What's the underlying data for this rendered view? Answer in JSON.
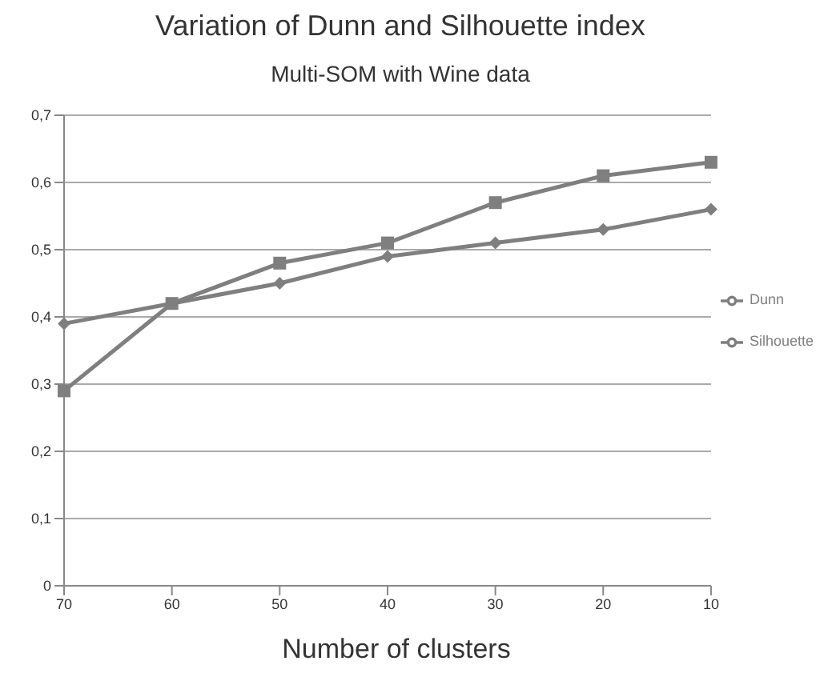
{
  "chart_data": {
    "type": "line",
    "title": "Variation of Dunn and Silhouette index",
    "subtitle": "Multi-SOM with Wine data",
    "xlabel": "Number of clusters",
    "categories": [
      "70",
      "60",
      "50",
      "40",
      "30",
      "20",
      "10"
    ],
    "series": [
      {
        "name": "Dunn",
        "color": "#7f7f7f",
        "marker": "diamond",
        "values": [
          0.39,
          0.42,
          0.45,
          0.49,
          0.51,
          0.53,
          0.56
        ]
      },
      {
        "name": "Silhouette",
        "color": "#7f7f7f",
        "marker": "square",
        "values": [
          0.29,
          0.42,
          0.48,
          0.51,
          0.57,
          0.61,
          0.63
        ]
      }
    ],
    "ylim": [
      0,
      0.7
    ],
    "yticks": [
      0,
      {
        "value": 0.1,
        "label": "0,1"
      },
      {
        "value": 0.2,
        "label": "0,2"
      },
      {
        "value": 0.3,
        "label": "0,3"
      },
      {
        "value": 0.4,
        "label": "0,4"
      },
      {
        "value": 0.5,
        "label": "0,5"
      },
      {
        "value": 0.6,
        "label": "0,6"
      },
      {
        "value": 0.7,
        "label": "0,7"
      }
    ],
    "grid": "y",
    "legend": "right",
    "line_style": "solid"
  }
}
